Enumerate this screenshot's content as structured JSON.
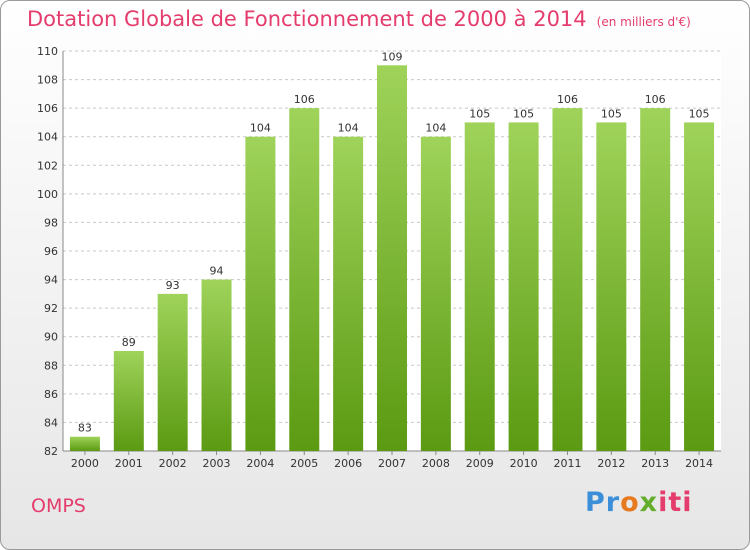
{
  "header": {
    "title": "Dotation Globale de Fonctionnement de 2000 à 2014",
    "unit": "(en milliers d'€)"
  },
  "footer": {
    "commune": "OMPS",
    "logo_parts": [
      "Pr",
      "o",
      "x",
      "iti"
    ]
  },
  "colors": {
    "title": "#e43c6c",
    "bar_top": "#9fd35a",
    "bar_bottom": "#5b9a12",
    "grid": "#c8c8c8"
  },
  "chart_data": {
    "type": "bar",
    "categories": [
      "2000",
      "2001",
      "2002",
      "2003",
      "2004",
      "2005",
      "2006",
      "2007",
      "2008",
      "2009",
      "2010",
      "2011",
      "2012",
      "2013",
      "2014"
    ],
    "values": [
      83,
      89,
      93,
      94,
      104,
      106,
      104,
      109,
      104,
      105,
      105,
      106,
      105,
      106,
      105
    ],
    "title": "Dotation Globale de Fonctionnement de 2000 à 2014",
    "subtitle": "(en milliers d'€)",
    "xlabel": "",
    "ylabel": "",
    "ylim": [
      82,
      110
    ],
    "yticks": [
      82,
      84,
      86,
      88,
      90,
      92,
      94,
      96,
      98,
      100,
      102,
      104,
      106,
      108,
      110
    ],
    "grid": true,
    "data_labels": true
  }
}
